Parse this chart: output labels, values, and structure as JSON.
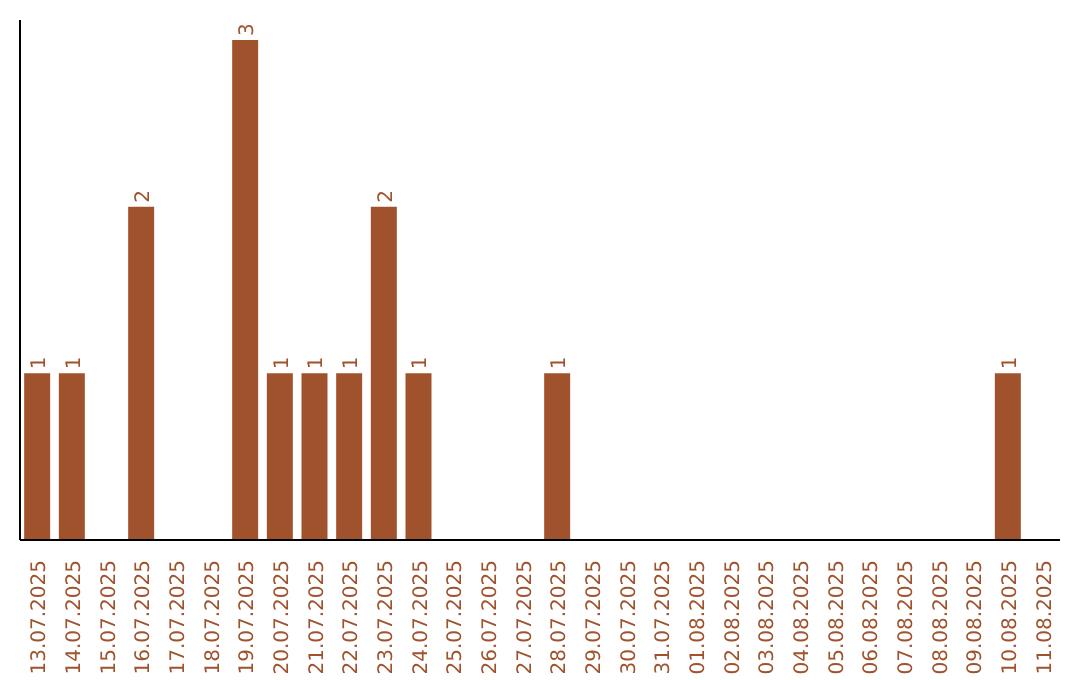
{
  "chart_data": {
    "type": "bar",
    "categories": [
      "13.07.2025",
      "14.07.2025",
      "15.07.2025",
      "16.07.2025",
      "17.07.2025",
      "18.07.2025",
      "19.07.2025",
      "20.07.2025",
      "21.07.2025",
      "22.07.2025",
      "23.07.2025",
      "24.07.2025",
      "25.07.2025",
      "26.07.2025",
      "27.07.2025",
      "28.07.2025",
      "29.07.2025",
      "30.07.2025",
      "31.07.2025",
      "01.08.2025",
      "02.08.2025",
      "03.08.2025",
      "04.08.2025",
      "05.08.2025",
      "06.08.2025",
      "07.08.2025",
      "08.08.2025",
      "09.08.2025",
      "10.08.2025",
      "11.08.2025"
    ],
    "values": [
      1,
      1,
      0,
      2,
      0,
      0,
      3,
      1,
      1,
      1,
      2,
      1,
      0,
      0,
      0,
      1,
      0,
      0,
      0,
      0,
      0,
      0,
      0,
      0,
      0,
      0,
      0,
      0,
      1,
      0
    ],
    "value_labels": [
      "1",
      "1",
      null,
      "2",
      null,
      null,
      "3",
      "1",
      "1",
      "1",
      "2",
      "1",
      null,
      null,
      null,
      "1",
      null,
      null,
      null,
      null,
      null,
      null,
      null,
      null,
      null,
      null,
      null,
      null,
      "1",
      null
    ],
    "color": "#a0522d",
    "grid": false,
    "legend": false
  }
}
